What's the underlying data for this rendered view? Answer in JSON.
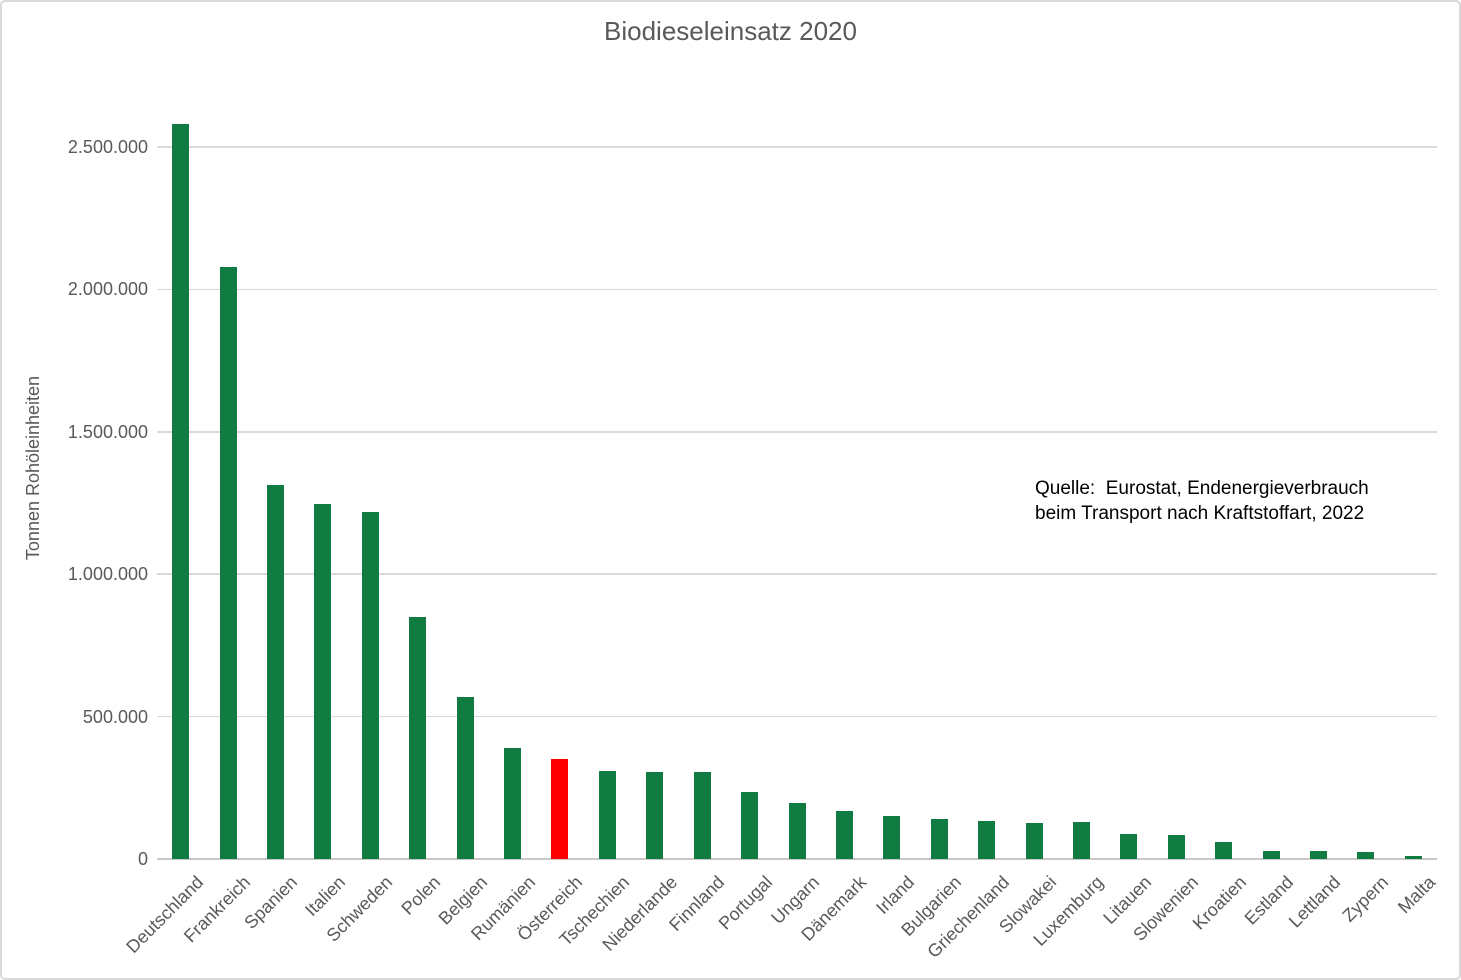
{
  "title": "Biodieseleinsatz 2020",
  "source_note": {
    "line1": "Quelle:  Eurostat, Endenergieverbrauch",
    "line2": "beim Transport nach Kraftstoffart, 2022"
  },
  "colors": {
    "bar": "#107C41",
    "bar_highlight": "#FF0000",
    "title_text": "#595959",
    "axis_text": "#595959",
    "gridline": "#D9D9D9",
    "axis_line": "#C8C8C8",
    "source_text": "#000000",
    "frame_border": "#D9D9D9",
    "background": "#FFFFFF"
  },
  "chart_data": {
    "type": "bar",
    "title": "Biodieseleinsatz 2020",
    "xlabel": "",
    "ylabel": "Tonnen Rohöleinheiten",
    "unit": "Tonnen Rohöleinheiten",
    "ylim": [
      0,
      2630000
    ],
    "yticks": [
      0,
      500000,
      1000000,
      1500000,
      2000000,
      2500000
    ],
    "ytick_labels": [
      "0",
      "500.000",
      "1.000.000",
      "1.500.000",
      "2.000.000",
      "2.500.000"
    ],
    "grid": "horizontal gridlines on",
    "legend": "none",
    "highlight_category": "Österreich",
    "categories": [
      "Deutschland",
      "Frankreich",
      "Spanien",
      "Italien",
      "Schweden",
      "Polen",
      "Belgien",
      "Rumänien",
      "Österreich",
      "Tschechien",
      "Niederlande",
      "Finnland",
      "Portugal",
      "Ungarn",
      "Dänemark",
      "Irland",
      "Bulgarien",
      "Griechenland",
      "Slowakei",
      "Luxemburg",
      "Litauen",
      "Slowenien",
      "Kroatien",
      "Estland",
      "Lettland",
      "Zypern",
      "Malta"
    ],
    "values": [
      2580000,
      2080000,
      1315000,
      1245000,
      1220000,
      850000,
      570000,
      390000,
      350000,
      310000,
      305000,
      305000,
      235000,
      195000,
      170000,
      152000,
      142000,
      134000,
      127000,
      130000,
      87000,
      84000,
      61000,
      29000,
      29000,
      24000,
      12000
    ]
  }
}
